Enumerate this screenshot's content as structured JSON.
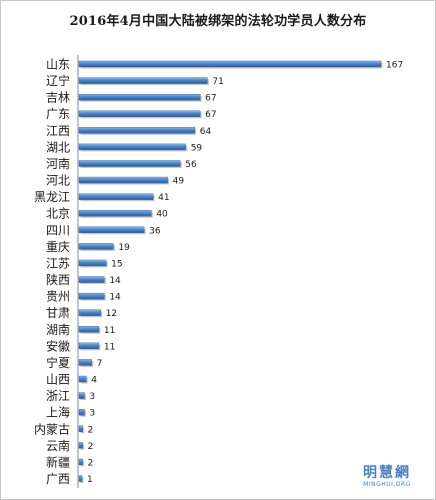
{
  "chart_data": {
    "type": "bar",
    "orientation": "horizontal",
    "title": "2016年4月中国大陆被绑架的法轮功学员人数分布",
    "categories": [
      "山东",
      "辽宁",
      "吉林",
      "广东",
      "江西",
      "湖北",
      "河南",
      "河北",
      "黑龙江",
      "北京",
      "四川",
      "重庆",
      "江苏",
      "陕西",
      "贵州",
      "甘肃",
      "湖南",
      "安徽",
      "宁夏",
      "山西",
      "浙江",
      "上海",
      "内蒙古",
      "云南",
      "新疆",
      "广西"
    ],
    "values": [
      167,
      71,
      67,
      67,
      64,
      59,
      56,
      49,
      41,
      40,
      36,
      19,
      15,
      14,
      14,
      12,
      11,
      11,
      7,
      4,
      3,
      3,
      2,
      2,
      2,
      1
    ],
    "xlim": [
      0,
      167
    ],
    "grid": false,
    "legend": "none",
    "bar_color": "#4a86c6"
  },
  "watermark": {
    "name_cn": "明慧網",
    "name_en": "MINGHUI.ORG"
  }
}
